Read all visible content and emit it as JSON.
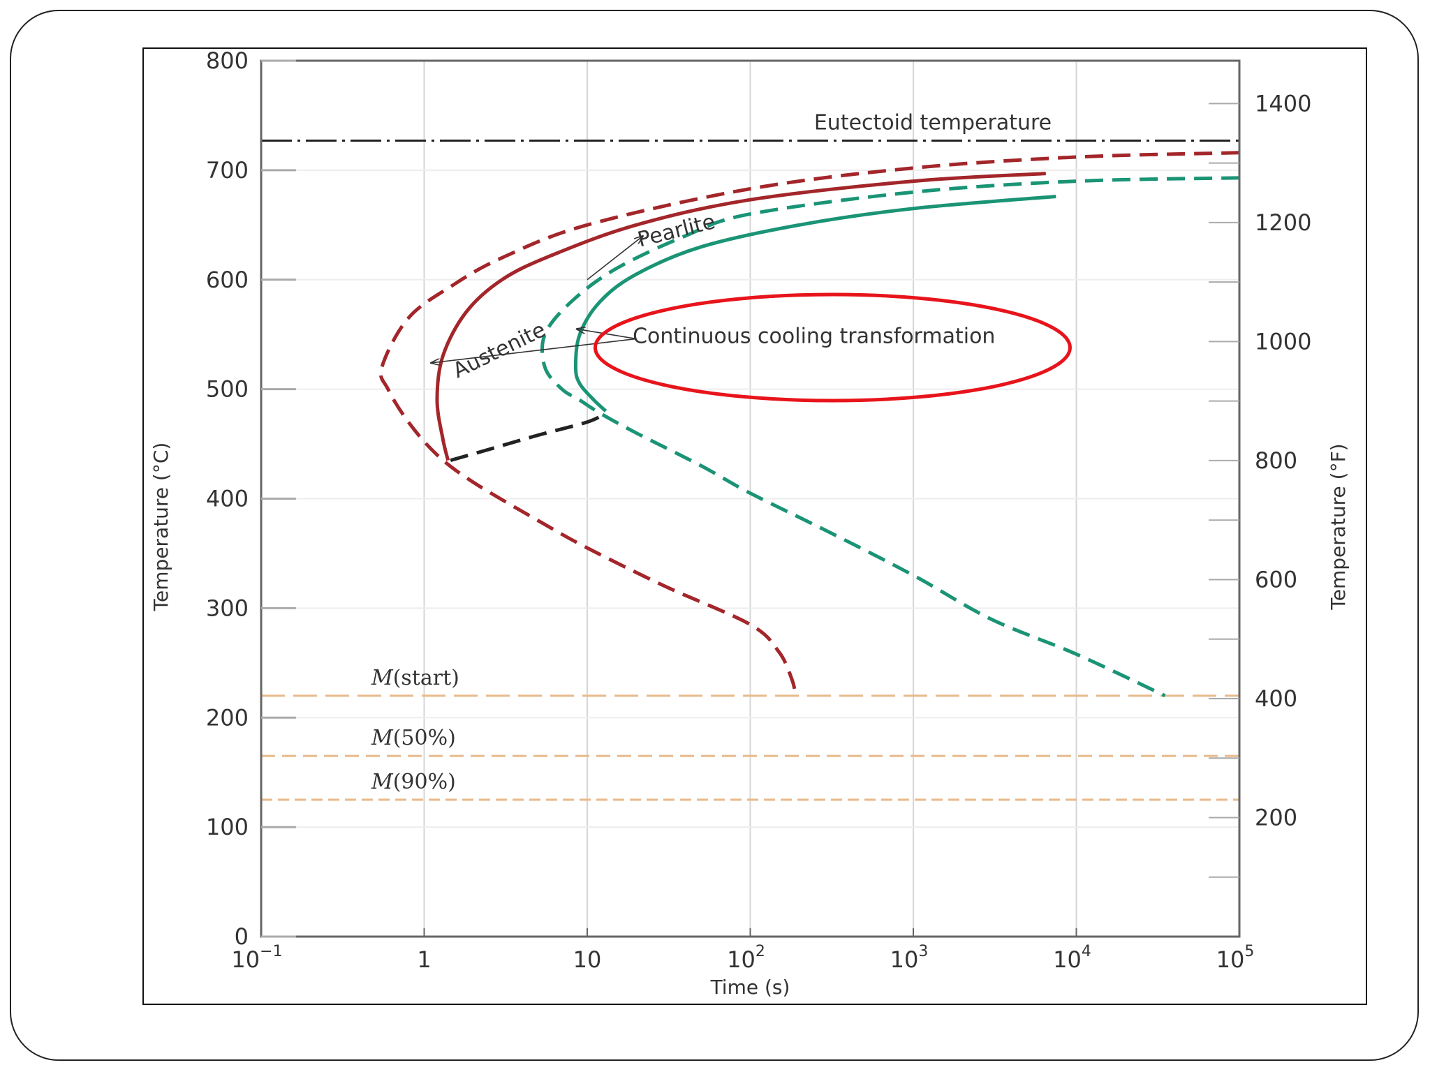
{
  "chart_data": {
    "type": "line",
    "xscale": "log",
    "xlim": [
      0.1,
      100000
    ],
    "ylim": [
      0,
      800
    ],
    "ylim_right": [
      0,
      1472
    ],
    "xlabel": "Time (s)",
    "ylabel": "Temperature (°C)",
    "ylabel_right": "Temperature (°F)",
    "x_ticks": [
      {
        "value": 0.1,
        "base": "10",
        "exp": "−1"
      },
      {
        "value": 1,
        "base": "1",
        "exp": ""
      },
      {
        "value": 10,
        "base": "10",
        "exp": ""
      },
      {
        "value": 100,
        "base": "10",
        "exp": "2"
      },
      {
        "value": 1000,
        "base": "10",
        "exp": "3"
      },
      {
        "value": 10000,
        "base": "10",
        "exp": "4"
      },
      {
        "value": 100000,
        "base": "10",
        "exp": "5"
      }
    ],
    "y_ticks": [
      "0",
      "100",
      "200",
      "300",
      "400",
      "500",
      "600",
      "700",
      "800"
    ],
    "y_ticks_right": [
      "200",
      "400",
      "600",
      "800",
      "1000",
      "1200",
      "1400"
    ],
    "grid": true,
    "reference_lines": [
      {
        "label": "Eutectoid temperature",
        "y": 727,
        "style": "dash-dot",
        "color": "#222222"
      },
      {
        "label_prefix": "M",
        "label_suffix": "(start)",
        "y": 220,
        "style": "dashed",
        "color": "#e8b98a"
      },
      {
        "label_prefix": "M",
        "label_suffix": "(50%)",
        "y": 165,
        "style": "dashed",
        "color": "#e8b98a"
      },
      {
        "label_prefix": "M",
        "label_suffix": "(90%)",
        "y": 125,
        "style": "dashed",
        "color": "#e8b98a"
      }
    ],
    "series": [
      {
        "id": "red-start-dashed",
        "color": "#a3262a",
        "style": "dashed",
        "points": [
          [
            100000,
            716
          ],
          [
            10000,
            712
          ],
          [
            1000,
            702
          ],
          [
            100,
            683
          ],
          [
            10,
            650
          ],
          [
            3,
            620
          ],
          [
            1.5,
            595
          ],
          [
            0.8,
            565
          ],
          [
            0.55,
            520
          ],
          [
            0.6,
            500
          ],
          [
            0.8,
            470
          ],
          [
            1.2,
            440
          ],
          [
            2,
            415
          ],
          [
            5,
            380
          ],
          [
            10,
            355
          ],
          [
            30,
            320
          ],
          [
            100,
            285
          ],
          [
            150,
            260
          ],
          [
            180,
            235
          ],
          [
            190,
            220
          ]
        ]
      },
      {
        "id": "red-start-solid",
        "color": "#a3262a",
        "style": "solid",
        "points": [
          [
            6500,
            697
          ],
          [
            1000,
            690
          ],
          [
            100,
            673
          ],
          [
            20,
            650
          ],
          [
            6,
            622
          ],
          [
            3,
            600
          ],
          [
            1.8,
            570
          ],
          [
            1.3,
            530
          ],
          [
            1.2,
            490
          ],
          [
            1.3,
            455
          ],
          [
            1.4,
            435
          ]
        ]
      },
      {
        "id": "green-finish-dashed",
        "color": "#1a9475",
        "style": "dashed",
        "points": [
          [
            100000,
            693
          ],
          [
            10000,
            690
          ],
          [
            1000,
            680
          ],
          [
            100,
            660
          ],
          [
            40,
            640
          ],
          [
            15,
            610
          ],
          [
            8,
            580
          ],
          [
            5.5,
            550
          ],
          [
            5.5,
            520
          ],
          [
            7,
            500
          ],
          [
            9,
            490
          ],
          [
            12,
            478
          ],
          [
            20,
            460
          ],
          [
            50,
            430
          ],
          [
            100,
            405
          ],
          [
            300,
            370
          ],
          [
            1000,
            330
          ],
          [
            3000,
            290
          ],
          [
            10000,
            258
          ],
          [
            35000,
            220
          ]
        ]
      },
      {
        "id": "green-finish-solid",
        "color": "#1a9475",
        "style": "solid",
        "points": [
          [
            7500,
            676
          ],
          [
            1000,
            665
          ],
          [
            200,
            650
          ],
          [
            50,
            630
          ],
          [
            20,
            605
          ],
          [
            12,
            580
          ],
          [
            9,
            550
          ],
          [
            8.5,
            520
          ],
          [
            9,
            505
          ],
          [
            11,
            490
          ],
          [
            13,
            480
          ]
        ]
      },
      {
        "id": "bainite-dashed",
        "color": "#222222",
        "style": "dashed",
        "points": [
          [
            1.45,
            435
          ],
          [
            2.5,
            445
          ],
          [
            5,
            458
          ],
          [
            10,
            470
          ],
          [
            13,
            478
          ]
        ]
      }
    ],
    "annotations": [
      {
        "text": "Austenite",
        "x": 1.6,
        "y": 510,
        "angle": -26
      },
      {
        "text": "Pearlite",
        "x": 21,
        "y": 630,
        "angle": -14
      },
      {
        "text": "Continuous cooling transformation",
        "x": 19,
        "y": 542
      }
    ],
    "arrows": [
      {
        "from": [
          10,
          600
        ],
        "to": [
          22,
          640
        ]
      },
      {
        "from": [
          20,
          546
        ],
        "to": [
          1.1,
          524
        ]
      },
      {
        "from": [
          20,
          546
        ],
        "to": [
          8.6,
          555
        ]
      }
    ],
    "highlight": {
      "type": "ellipse",
      "color": "#e8141b",
      "target": "Continuous cooling transformation"
    }
  }
}
